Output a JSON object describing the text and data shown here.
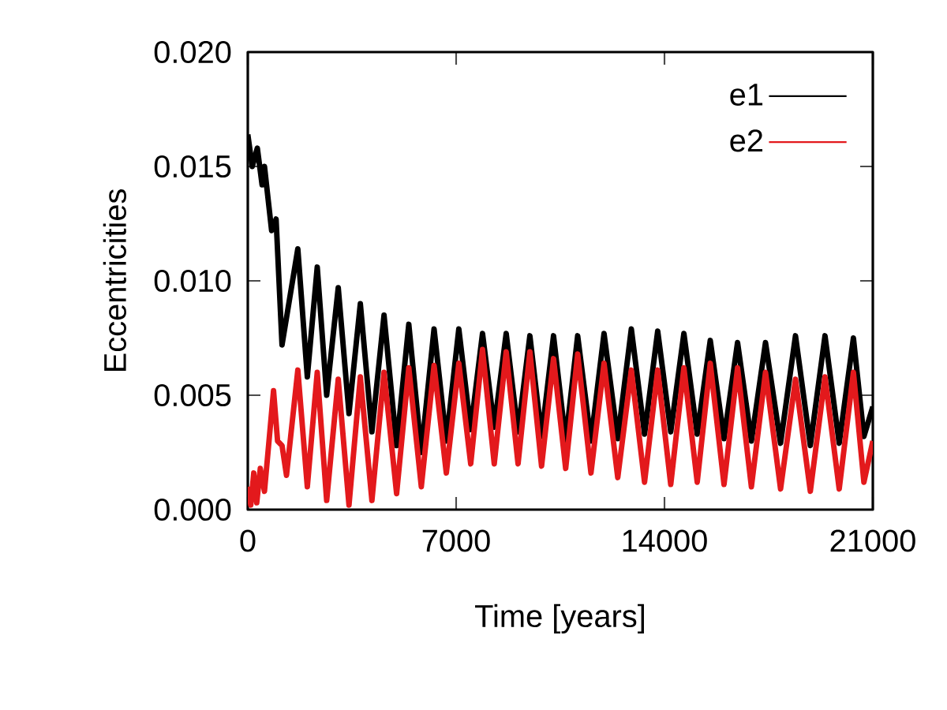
{
  "chart_data": {
    "type": "line",
    "xlabel": "Time [years]",
    "ylabel": "Eccentricities",
    "xlim": [
      0,
      21000
    ],
    "ylim": [
      0,
      0.02
    ],
    "xticks": [
      0,
      7000,
      14000,
      21000
    ],
    "yticks": [
      {
        "value": 0,
        "label": "0.000"
      },
      {
        "value": 0.005,
        "label": "0.005"
      },
      {
        "value": 0.01,
        "label": "0.010"
      },
      {
        "value": 0.015,
        "label": "0.015"
      },
      {
        "value": 0.02,
        "label": "0.020"
      }
    ],
    "legend": "top right",
    "grid": false,
    "marker": "none",
    "line_style": "solid",
    "series": [
      {
        "name": "e1",
        "color": "#000000",
        "x": [
          0,
          150,
          320,
          480,
          560,
          800,
          950,
          1150,
          1681,
          2000,
          2333,
          2650,
          3039,
          3400,
          3781,
          4170,
          4577,
          5000,
          5409,
          5830,
          6258,
          6670,
          7090,
          7490,
          7886,
          8280,
          8681,
          9080,
          9477,
          9870,
          10272,
          10680,
          11083,
          11530,
          11969,
          12430,
          12886,
          13330,
          13772,
          14210,
          14652,
          15100,
          15538,
          16000,
          16455,
          16920,
          17394,
          17900,
          18402,
          18900,
          19393,
          19870,
          20348,
          20700,
          21000
        ],
        "values": [
          0.0164,
          0.015,
          0.0158,
          0.0142,
          0.015,
          0.0122,
          0.0127,
          0.0072,
          0.0114,
          0.0058,
          0.0106,
          0.005,
          0.0097,
          0.0042,
          0.009,
          0.0034,
          0.0085,
          0.0028,
          0.0081,
          0.0025,
          0.0079,
          0.003,
          0.0079,
          0.0035,
          0.0077,
          0.0036,
          0.0077,
          0.0034,
          0.0076,
          0.0032,
          0.0076,
          0.003,
          0.0076,
          0.003,
          0.0077,
          0.0031,
          0.0079,
          0.0033,
          0.0078,
          0.0034,
          0.0077,
          0.0033,
          0.0074,
          0.0031,
          0.0073,
          0.003,
          0.0073,
          0.0029,
          0.0076,
          0.0028,
          0.0076,
          0.0029,
          0.0075,
          0.0032,
          0.0045
        ]
      },
      {
        "name": "e2",
        "color": "#e3191c",
        "x": [
          0,
          100,
          200,
          300,
          420,
          560,
          865,
          1000,
          1150,
          1300,
          1681,
          2000,
          2333,
          2650,
          3039,
          3400,
          3781,
          4170,
          4577,
          5000,
          5409,
          5830,
          6258,
          6670,
          7090,
          7490,
          7886,
          8280,
          8681,
          9080,
          9477,
          9870,
          10272,
          10680,
          11083,
          11530,
          11969,
          12430,
          12886,
          13330,
          13772,
          14210,
          14652,
          15100,
          15538,
          16000,
          16455,
          16920,
          17394,
          17900,
          18402,
          18900,
          19393,
          19870,
          20348,
          20700,
          21000
        ],
        "values": [
          0.001,
          0.0002,
          0.0016,
          0.0003,
          0.0018,
          0.0008,
          0.0052,
          0.003,
          0.0028,
          0.0015,
          0.0061,
          0.001,
          0.006,
          0.0004,
          0.0057,
          0.0002,
          0.0058,
          0.0004,
          0.006,
          0.0007,
          0.0062,
          0.001,
          0.0063,
          0.0016,
          0.0064,
          0.002,
          0.007,
          0.002,
          0.0069,
          0.002,
          0.0069,
          0.0019,
          0.0066,
          0.0018,
          0.0068,
          0.0016,
          0.0064,
          0.0014,
          0.0061,
          0.0012,
          0.0061,
          0.0011,
          0.0062,
          0.0012,
          0.0064,
          0.0011,
          0.0062,
          0.001,
          0.006,
          0.0009,
          0.0057,
          0.0008,
          0.0058,
          0.0009,
          0.006,
          0.0012,
          0.003
        ]
      }
    ]
  }
}
